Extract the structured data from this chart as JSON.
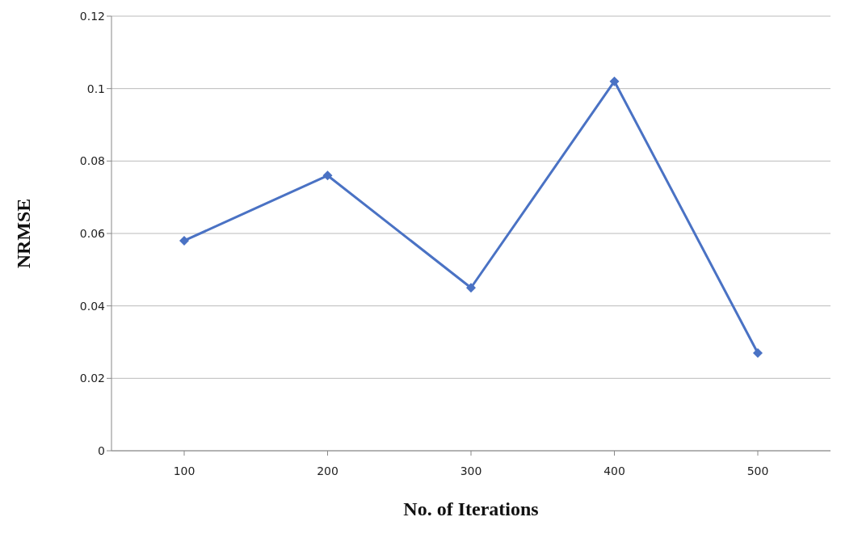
{
  "chart_data": {
    "type": "line",
    "xlabel": "No. of Iterations",
    "ylabel": "NRMSE",
    "categories": [
      "100",
      "200",
      "300",
      "400",
      "500"
    ],
    "series": [
      {
        "color": "#4a72c4",
        "values": [
          0.058,
          0.076,
          0.045,
          0.102,
          0.027
        ]
      }
    ],
    "ylim": [
      0,
      0.12
    ],
    "yticks": [
      0,
      0.02,
      0.04,
      0.06,
      0.08,
      0.1,
      0.12
    ],
    "grid": "y",
    "legend": false,
    "marker": "diamond",
    "line_style": "solid"
  }
}
